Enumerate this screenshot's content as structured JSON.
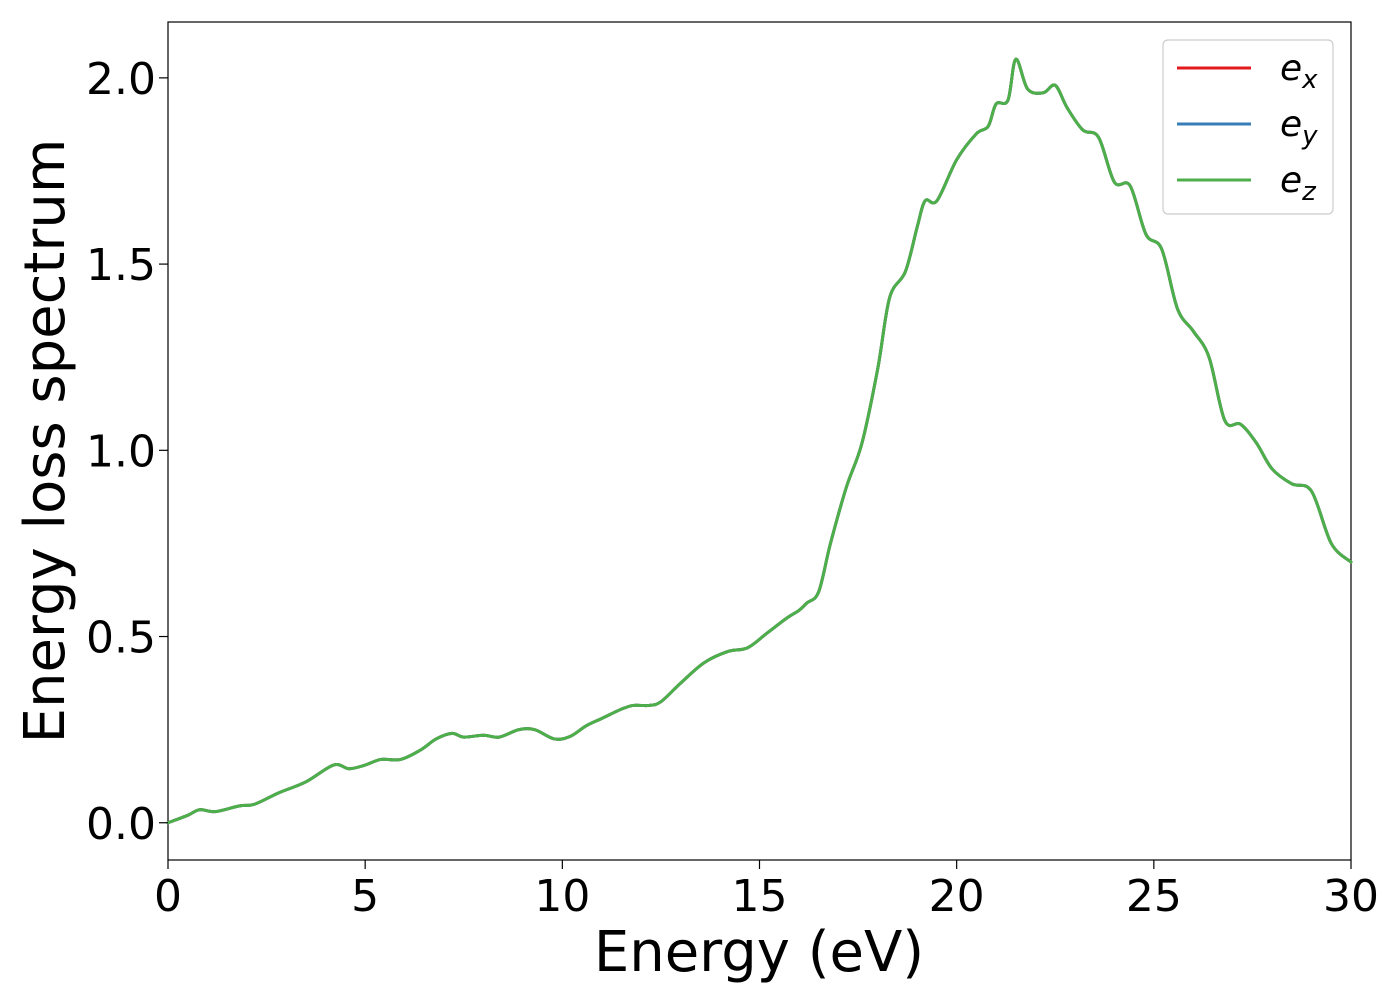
{
  "chart_data": {
    "type": "line",
    "xlabel": "Energy (eV)",
    "ylabel": "Energy loss spectrum",
    "xlim": [
      0,
      30
    ],
    "ylim": [
      -0.1,
      2.15
    ],
    "xticks": [
      "0",
      "5",
      "10",
      "15",
      "20",
      "25",
      "30"
    ],
    "yticks": [
      "0.0",
      "0.5",
      "1.0",
      "1.5",
      "2.0"
    ],
    "grid": false,
    "legend_position": "top-right",
    "x": [
      0,
      0.5,
      0.8,
      1.2,
      1.8,
      2.2,
      2.8,
      3.5,
      4.2,
      4.6,
      5.0,
      5.4,
      5.9,
      6.4,
      6.8,
      7.2,
      7.5,
      8.0,
      8.4,
      8.9,
      9.3,
      9.8,
      10.2,
      10.6,
      11.0,
      11.5,
      11.8,
      12.2,
      12.5,
      13.0,
      13.6,
      14.2,
      14.7,
      15.2,
      15.7,
      16.0,
      16.2,
      16.5,
      16.8,
      17.2,
      17.6,
      18.0,
      18.3,
      18.7,
      19.0,
      19.2,
      19.5,
      20.0,
      20.5,
      20.8,
      21.0,
      21.3,
      21.5,
      21.8,
      22.2,
      22.5,
      22.8,
      23.2,
      23.6,
      24.0,
      24.4,
      24.8,
      25.2,
      25.6,
      26.0,
      26.4,
      26.8,
      27.2,
      27.6,
      28.0,
      28.5,
      29.0,
      29.5,
      30.0
    ],
    "series": [
      {
        "name": "e_x",
        "legend_main": "e",
        "legend_sub": "x",
        "color": "#e31a1c",
        "values": [
          0.0,
          0.02,
          0.035,
          0.03,
          0.045,
          0.05,
          0.08,
          0.11,
          0.155,
          0.145,
          0.155,
          0.17,
          0.17,
          0.195,
          0.225,
          0.24,
          0.23,
          0.235,
          0.23,
          0.25,
          0.25,
          0.225,
          0.232,
          0.26,
          0.28,
          0.305,
          0.315,
          0.315,
          0.325,
          0.375,
          0.43,
          0.46,
          0.47,
          0.51,
          0.55,
          0.57,
          0.59,
          0.62,
          0.75,
          0.9,
          1.02,
          1.22,
          1.41,
          1.48,
          1.6,
          1.67,
          1.67,
          1.78,
          1.85,
          1.87,
          1.93,
          1.94,
          2.05,
          1.97,
          1.96,
          1.98,
          1.92,
          1.86,
          1.84,
          1.72,
          1.71,
          1.58,
          1.54,
          1.38,
          1.32,
          1.25,
          1.08,
          1.07,
          1.02,
          0.95,
          0.91,
          0.89,
          0.75,
          0.7
        ]
      },
      {
        "name": "e_y",
        "legend_main": "e",
        "legend_sub": "y",
        "color": "#377eb8",
        "values": [
          0.0,
          0.02,
          0.035,
          0.03,
          0.045,
          0.05,
          0.08,
          0.11,
          0.155,
          0.145,
          0.155,
          0.17,
          0.17,
          0.195,
          0.225,
          0.24,
          0.23,
          0.235,
          0.23,
          0.25,
          0.25,
          0.225,
          0.232,
          0.26,
          0.28,
          0.305,
          0.315,
          0.315,
          0.325,
          0.375,
          0.43,
          0.46,
          0.47,
          0.51,
          0.55,
          0.57,
          0.59,
          0.62,
          0.75,
          0.9,
          1.02,
          1.22,
          1.41,
          1.48,
          1.6,
          1.67,
          1.67,
          1.78,
          1.85,
          1.87,
          1.93,
          1.94,
          2.05,
          1.97,
          1.96,
          1.98,
          1.92,
          1.86,
          1.84,
          1.72,
          1.71,
          1.58,
          1.54,
          1.38,
          1.32,
          1.25,
          1.08,
          1.07,
          1.02,
          0.95,
          0.91,
          0.89,
          0.75,
          0.7
        ]
      },
      {
        "name": "e_z",
        "legend_main": "e",
        "legend_sub": "z",
        "color": "#4daf4a",
        "values": [
          0.0,
          0.02,
          0.035,
          0.03,
          0.045,
          0.05,
          0.08,
          0.11,
          0.155,
          0.145,
          0.155,
          0.17,
          0.17,
          0.195,
          0.225,
          0.24,
          0.23,
          0.235,
          0.23,
          0.25,
          0.25,
          0.225,
          0.232,
          0.26,
          0.28,
          0.305,
          0.315,
          0.315,
          0.325,
          0.375,
          0.43,
          0.46,
          0.47,
          0.51,
          0.55,
          0.57,
          0.59,
          0.62,
          0.75,
          0.9,
          1.02,
          1.22,
          1.41,
          1.48,
          1.6,
          1.67,
          1.67,
          1.78,
          1.85,
          1.87,
          1.93,
          1.94,
          2.05,
          1.97,
          1.96,
          1.98,
          1.92,
          1.86,
          1.84,
          1.72,
          1.71,
          1.58,
          1.54,
          1.38,
          1.32,
          1.25,
          1.08,
          1.07,
          1.02,
          0.95,
          0.91,
          0.89,
          0.75,
          0.7
        ]
      }
    ]
  }
}
